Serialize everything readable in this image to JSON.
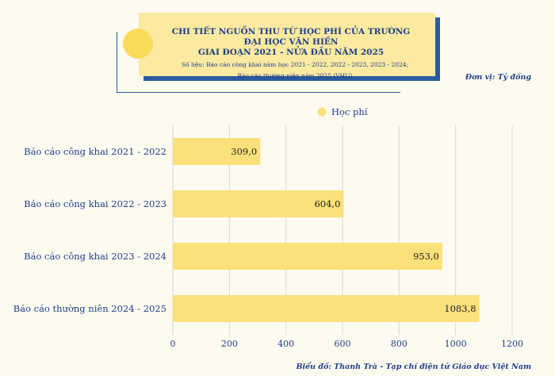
{
  "title_line1": "CHI TIẾT NGUỒN THU TỪ HỌC PHÍ CỦA TRƯỜNG ĐẠI HỌC VĂN HIẾN",
  "title_line2": "GIAI ĐOẠN 2021 - NỬA ĐẦU NĂM 2025",
  "source_line1": "Số liệu: Báo cáo công khai năm học 2021 - 2022, 2022 - 2023, 2023 - 2024;",
  "source_line2": "Báo cáo thường niên năm 2025 (VHU)",
  "unit": "Đơn vị: Tỷ đồng",
  "footer": "Biểu đồ: Thanh Trà - Tạp chí điện tử Giáo dục Việt Nam",
  "colors": {
    "bar": "#fce07a",
    "title_blue": "#1e3f8a",
    "grid": "#d4d8dc"
  },
  "chart_data": {
    "type": "bar",
    "orientation": "horizontal",
    "categories": [
      "Báo cáo công khai 2021 - 2022",
      "Báo cáo công khai 2022 - 2023",
      "Báo cáo công khai 2023 - 2024",
      "Báo cáo thường niên 2024 - 2025"
    ],
    "series": [
      {
        "name": "Học phí",
        "values": [
          309.0,
          604.0,
          953.0,
          1083.8
        ]
      }
    ],
    "value_labels": [
      "309,0",
      "604,0",
      "953,0",
      "1083,8"
    ],
    "xlim": [
      0,
      1200
    ],
    "xticks": [
      0,
      200,
      400,
      600,
      800,
      1000,
      1200
    ],
    "grid": true,
    "legend": "top-center"
  }
}
